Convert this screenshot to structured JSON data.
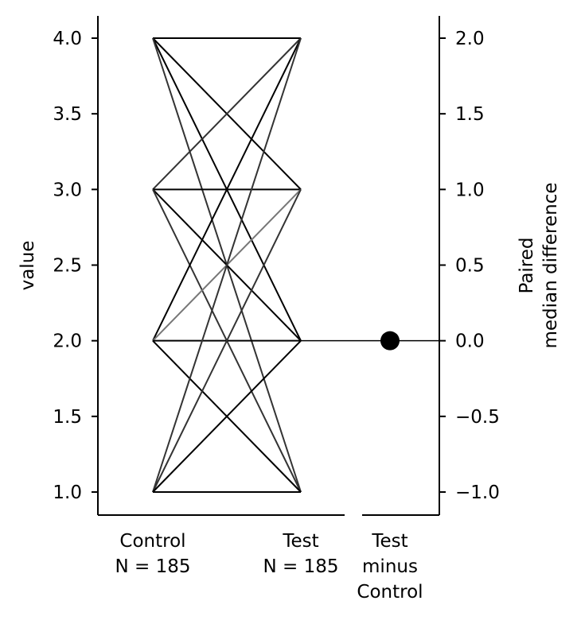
{
  "chart_data": {
    "type": "paired-slopegraph",
    "left_axis": {
      "label": "value",
      "ticks": [
        "1.0",
        "1.5",
        "2.0",
        "2.5",
        "3.0",
        "3.5",
        "4.0"
      ],
      "tick_values": [
        1.0,
        1.5,
        2.0,
        2.5,
        3.0,
        3.5,
        4.0
      ],
      "ylim": [
        0.85,
        4.15
      ]
    },
    "groups": [
      {
        "name": "Control",
        "n_label": "N = 185"
      },
      {
        "name": "Test",
        "n_label": "N = 185"
      }
    ],
    "pairs": [
      {
        "from": 4,
        "to": 4,
        "color": "#000000"
      },
      {
        "from": 4,
        "to": 3,
        "color": "#000000"
      },
      {
        "from": 4,
        "to": 2,
        "color": "#000000"
      },
      {
        "from": 4,
        "to": 1,
        "color": "#333333"
      },
      {
        "from": 3,
        "to": 4,
        "color": "#333333"
      },
      {
        "from": 3,
        "to": 3,
        "color": "#000000"
      },
      {
        "from": 3,
        "to": 2,
        "color": "#000000"
      },
      {
        "from": 3,
        "to": 1,
        "color": "#333333"
      },
      {
        "from": 2,
        "to": 4,
        "color": "#000000"
      },
      {
        "from": 2,
        "to": 3,
        "color": "#777777"
      },
      {
        "from": 2,
        "to": 2,
        "color": "#000000"
      },
      {
        "from": 2,
        "to": 1,
        "color": "#000000"
      },
      {
        "from": 1,
        "to": 4,
        "color": "#333333"
      },
      {
        "from": 1,
        "to": 3,
        "color": "#333333"
      },
      {
        "from": 1,
        "to": 2,
        "color": "#000000"
      },
      {
        "from": 1,
        "to": 1,
        "color": "#000000"
      }
    ],
    "delta": {
      "label_lines": [
        "Test",
        "minus",
        "Control"
      ],
      "value": 0.0,
      "ci": [
        0.0,
        0.0
      ],
      "axis_label_lines": [
        "Paired",
        "median difference"
      ],
      "ticks": [
        "−1.0",
        "−0.5",
        "0.0",
        "0.5",
        "1.0",
        "1.5",
        "2.0"
      ],
      "tick_values": [
        -1.0,
        -0.5,
        0.0,
        0.5,
        1.0,
        1.5,
        2.0
      ],
      "reference_value": 0.0
    },
    "colors": {
      "marker": "#000000",
      "axis": "#000000"
    }
  }
}
